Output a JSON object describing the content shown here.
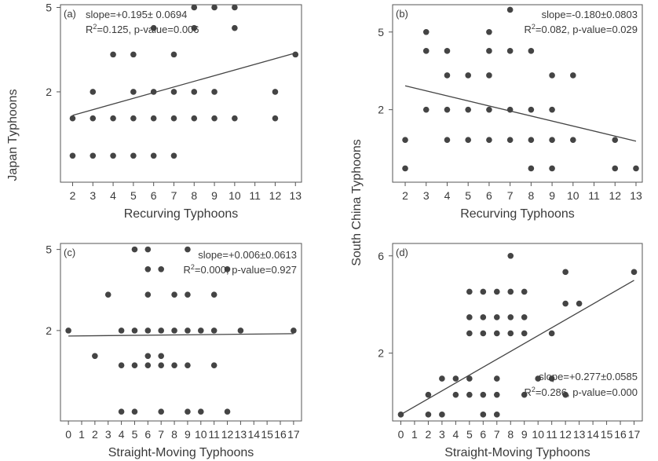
{
  "figure": {
    "ylabel_left": "Japan Typhoons",
    "ylabel_right": "South China Typhoons"
  },
  "chart_data": [
    {
      "type": "scatter",
      "panel": "(a)",
      "xlabel": "Recurving Typhoons",
      "x_ticks": [
        "2",
        "3",
        "4",
        "5",
        "6",
        "7",
        "8",
        "9",
        "10",
        "11",
        "12",
        "13"
      ],
      "y_ticks": [
        "2",
        "5"
      ],
      "xlim": [
        1.4,
        13.3
      ],
      "ylim": [
        0.75,
        5.15
      ],
      "log_y": true,
      "annotation": {
        "line1": "slope=+0.195± 0.0694",
        "r2_label": "R",
        "line2": "=0.125, p-value=0.006",
        "align": "left"
      },
      "fit": {
        "x0": 2,
        "y0": 1.55,
        "x1": 13,
        "y1": 3.05
      },
      "points": [
        [
          2,
          1
        ],
        [
          3,
          1
        ],
        [
          4,
          1
        ],
        [
          5,
          1
        ],
        [
          6,
          1
        ],
        [
          7,
          1
        ],
        [
          2,
          1.5
        ],
        [
          3,
          1.5
        ],
        [
          4,
          1.5
        ],
        [
          5,
          1.5
        ],
        [
          6,
          1.5
        ],
        [
          7,
          1.5
        ],
        [
          8,
          1.5
        ],
        [
          9,
          1.5
        ],
        [
          10,
          1.5
        ],
        [
          12,
          1.5
        ],
        [
          3,
          2
        ],
        [
          5,
          2
        ],
        [
          6,
          2
        ],
        [
          7,
          2
        ],
        [
          8,
          2
        ],
        [
          9,
          2
        ],
        [
          12,
          2
        ],
        [
          4,
          3
        ],
        [
          5,
          3
        ],
        [
          7,
          3
        ],
        [
          13,
          3
        ],
        [
          6,
          4
        ],
        [
          8,
          4
        ],
        [
          10,
          4
        ],
        [
          8,
          5
        ],
        [
          9,
          5
        ],
        [
          10,
          5
        ]
      ]
    },
    {
      "type": "scatter",
      "panel": "(b)",
      "xlabel": "Recurving Typhoons",
      "x_ticks": [
        "2",
        "3",
        "4",
        "5",
        "6",
        "7",
        "8",
        "9",
        "10",
        "11",
        "12",
        "13"
      ],
      "y_ticks": [
        "2",
        "5"
      ],
      "xlim": [
        1.4,
        13.3
      ],
      "ylim": [
        0.85,
        6.9
      ],
      "log_y": true,
      "annotation": {
        "line1": "slope=-0.180±0.0803",
        "r2_label": "R",
        "line2": "=0.082, p-value=0.029",
        "align": "right"
      },
      "fit": {
        "x0": 2,
        "y0": 2.65,
        "x1": 13,
        "y1": 1.38
      },
      "points": [
        [
          2,
          1
        ],
        [
          8,
          1
        ],
        [
          9,
          1
        ],
        [
          12,
          1
        ],
        [
          13,
          1
        ],
        [
          2,
          1.4
        ],
        [
          4,
          1.4
        ],
        [
          5,
          1.4
        ],
        [
          6,
          1.4
        ],
        [
          7,
          1.4
        ],
        [
          8,
          1.4
        ],
        [
          9,
          1.4
        ],
        [
          10,
          1.4
        ],
        [
          12,
          1.4
        ],
        [
          3,
          2
        ],
        [
          4,
          2
        ],
        [
          5,
          2
        ],
        [
          6,
          2
        ],
        [
          7,
          2
        ],
        [
          8,
          2
        ],
        [
          9,
          2
        ],
        [
          4,
          3
        ],
        [
          5,
          3
        ],
        [
          6,
          3
        ],
        [
          9,
          3
        ],
        [
          10,
          3
        ],
        [
          3,
          4
        ],
        [
          4,
          4
        ],
        [
          6,
          4
        ],
        [
          7,
          4
        ],
        [
          8,
          4
        ],
        [
          3,
          5
        ],
        [
          6,
          5
        ],
        [
          7,
          6.5
        ]
      ]
    },
    {
      "type": "scatter",
      "panel": "(c)",
      "xlabel": "Straight-Moving Typhoons",
      "x_ticks": [
        "0",
        "1",
        "2",
        "3",
        "4",
        "5",
        "6",
        "7",
        "8",
        "9",
        "10",
        "11",
        "12",
        "13",
        "14",
        "15",
        "16",
        "17"
      ],
      "y_ticks": [
        "2",
        "5"
      ],
      "xlim": [
        -0.6,
        17.6
      ],
      "ylim": [
        0.72,
        5.35
      ],
      "log_y": true,
      "annotation": {
        "line1": "slope=+0.006±0.0613",
        "r2_label": "R",
        "line2": "=0.000, p-value=0.927",
        "align": "right"
      },
      "fit": {
        "x0": 0,
        "y0": 1.88,
        "x1": 17,
        "y1": 1.93
      },
      "points": [
        [
          4,
          0.8
        ],
        [
          5,
          0.8
        ],
        [
          7,
          0.8
        ],
        [
          9,
          0.8
        ],
        [
          10,
          0.8
        ],
        [
          12,
          0.8
        ],
        [
          4,
          1.35
        ],
        [
          5,
          1.35
        ],
        [
          6,
          1.35
        ],
        [
          7,
          1.35
        ],
        [
          8,
          1.35
        ],
        [
          9,
          1.35
        ],
        [
          11,
          1.35
        ],
        [
          2,
          1.5
        ],
        [
          6,
          1.5
        ],
        [
          7,
          1.5
        ],
        [
          0,
          2
        ],
        [
          4,
          2
        ],
        [
          5,
          2
        ],
        [
          6,
          2
        ],
        [
          7,
          2
        ],
        [
          8,
          2
        ],
        [
          9,
          2
        ],
        [
          10,
          2
        ],
        [
          11,
          2
        ],
        [
          13,
          2
        ],
        [
          17,
          2
        ],
        [
          3,
          3
        ],
        [
          6,
          3
        ],
        [
          8,
          3
        ],
        [
          9,
          3
        ],
        [
          11,
          3
        ],
        [
          6,
          4
        ],
        [
          7,
          4
        ],
        [
          12,
          4
        ],
        [
          5,
          5
        ],
        [
          6,
          5
        ],
        [
          9,
          5
        ]
      ]
    },
    {
      "type": "scatter",
      "panel": "(d)",
      "xlabel": "Straight-Moving Typhoons",
      "x_ticks": [
        "0",
        "1",
        "2",
        "3",
        "4",
        "5",
        "6",
        "7",
        "8",
        "9",
        "10",
        "11",
        "12",
        "13",
        "14",
        "15",
        "16",
        "17"
      ],
      "y_ticks": [
        "2",
        "6"
      ],
      "xlim": [
        -0.6,
        17.6
      ],
      "ylim": [
        0.93,
        6.9
      ],
      "log_y": true,
      "annotation": {
        "line1": "slope=+0.277±0.0585",
        "r2_label": "R",
        "line2": "=0.286, p-value=0.000",
        "align": "right"
      },
      "fit": {
        "x0": 0,
        "y0": 1.0,
        "x1": 17,
        "y1": 4.55
      },
      "points": [
        [
          0,
          1
        ],
        [
          2,
          1
        ],
        [
          3,
          1
        ],
        [
          6,
          1
        ],
        [
          7,
          1
        ],
        [
          2,
          1.25
        ],
        [
          4,
          1.25
        ],
        [
          5,
          1.25
        ],
        [
          6,
          1.25
        ],
        [
          7,
          1.25
        ],
        [
          9,
          1.25
        ],
        [
          12,
          1.25
        ],
        [
          3,
          1.5
        ],
        [
          4,
          1.5
        ],
        [
          5,
          1.5
        ],
        [
          7,
          1.5
        ],
        [
          10,
          1.5
        ],
        [
          11,
          1.5
        ],
        [
          5,
          2.5
        ],
        [
          6,
          2.5
        ],
        [
          7,
          2.5
        ],
        [
          8,
          2.5
        ],
        [
          9,
          2.5
        ],
        [
          11,
          2.5
        ],
        [
          5,
          3
        ],
        [
          6,
          3
        ],
        [
          7,
          3
        ],
        [
          8,
          3
        ],
        [
          9,
          3
        ],
        [
          12,
          3.5
        ],
        [
          13,
          3.5
        ],
        [
          5,
          4
        ],
        [
          6,
          4
        ],
        [
          7,
          4
        ],
        [
          8,
          4
        ],
        [
          9,
          4
        ],
        [
          12,
          5
        ],
        [
          17,
          5
        ],
        [
          8,
          6
        ]
      ]
    }
  ]
}
